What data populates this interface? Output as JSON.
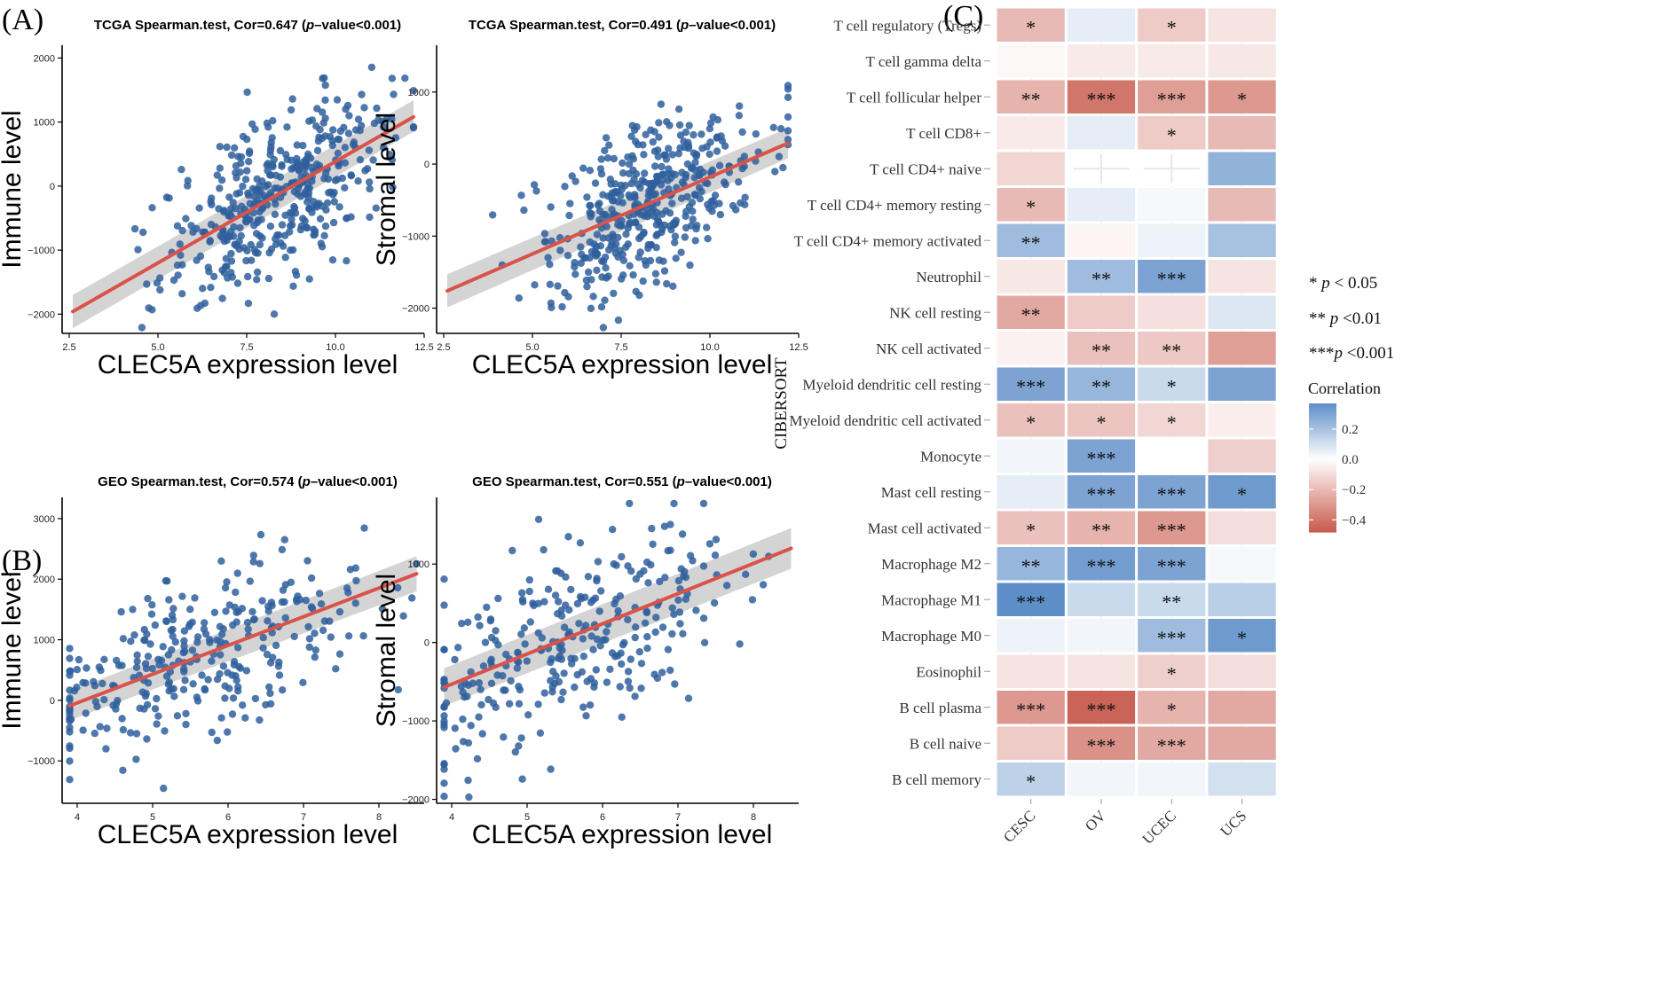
{
  "panel_labels": [
    "(A)",
    "(B)",
    "(C)"
  ],
  "colors": {
    "point": "#2f5f9c",
    "fit_line": "#d9534a",
    "ci_band": "#cfcfcf",
    "heat_neg": "#c85a4d",
    "heat_mid": "#ffffff",
    "heat_pos": "#5d8ec7"
  },
  "chart_data": [
    {
      "id": "A1",
      "type": "scatter",
      "panel": "(A)",
      "title_prefix": "TCGA Spearman.test, Cor=0.647 (",
      "title_p": "p",
      "title_suffix": "–value<0.001)",
      "xlabel": "CLEC5A expression level",
      "ylabel": "Immune level",
      "xlim": [
        2.3,
        12.5
      ],
      "ylim": [
        -2300,
        2200
      ],
      "xticks": [
        2.5,
        5.0,
        7.5,
        10.0,
        12.5
      ],
      "xtick_labels": [
        "2.5",
        "5.0",
        "7.5",
        "10.0",
        "12.5"
      ],
      "yticks": [
        -2000,
        -1000,
        0,
        1000,
        2000
      ],
      "ytick_labels": [
        "−2000",
        "−1000",
        "0",
        "1000",
        "2000"
      ],
      "fit": {
        "x": [
          2.6,
          12.2
        ],
        "y": [
          -1960,
          1080
        ]
      },
      "ci": {
        "lower": [
          -2220,
          850
        ],
        "upper": [
          -1700,
          1340
        ]
      },
      "points": {
        "n": 420,
        "center_x": 8.4,
        "sd_x": 1.6,
        "sd_resid": 620,
        "min_x": 2.5,
        "max_x": 12.2
      }
    },
    {
      "id": "A2",
      "type": "scatter",
      "panel": "(A)",
      "title_prefix": "TCGA Spearman.test, Cor=0.491 (",
      "title_p": "p",
      "title_suffix": "–value<0.001)",
      "xlabel": "CLEC5A expression level",
      "ylabel": "Stromal level",
      "xlim": [
        2.3,
        12.5
      ],
      "ylim": [
        -2350,
        1650
      ],
      "xticks": [
        2.5,
        5.0,
        7.5,
        10.0,
        12.5
      ],
      "xtick_labels": [
        "2.5",
        "5.0",
        "7.5",
        "10.0",
        "12.5"
      ],
      "yticks": [
        -2000,
        -1000,
        0,
        1000
      ],
      "ytick_labels": [
        "−2000",
        "−1000",
        "0",
        "1000"
      ],
      "fit": {
        "x": [
          2.6,
          12.2
        ],
        "y": [
          -1760,
          290
        ]
      },
      "ci": {
        "lower": [
          -1990,
          80
        ],
        "upper": [
          -1530,
          500
        ]
      },
      "points": {
        "n": 420,
        "center_x": 8.4,
        "sd_x": 1.6,
        "sd_resid": 560,
        "min_x": 2.5,
        "max_x": 12.2
      }
    },
    {
      "id": "B1",
      "type": "scatter",
      "panel": "(B)",
      "title_prefix": "GEO Spearman.test, Cor=0.574 (",
      "title_p": "p",
      "title_suffix": "–value<0.001)",
      "xlabel": "CLEC5A expression level",
      "ylabel": "Immune level",
      "xlim": [
        3.8,
        8.6
      ],
      "ylim": [
        -1700,
        3350
      ],
      "xticks": [
        4,
        5,
        6,
        7,
        8
      ],
      "xtick_labels": [
        "4",
        "5",
        "6",
        "7",
        "8"
      ],
      "yticks": [
        -1000,
        0,
        1000,
        2000,
        3000
      ],
      "ytick_labels": [
        "−1000",
        "0",
        "1000",
        "2000",
        "3000"
      ],
      "fit": {
        "x": [
          3.9,
          8.5
        ],
        "y": [
          -90,
          2090
        ]
      },
      "ci": {
        "lower": [
          -330,
          1800
        ],
        "upper": [
          150,
          2380
        ]
      },
      "points": {
        "n": 300,
        "center_x": 5.6,
        "sd_x": 1.05,
        "sd_resid": 700,
        "min_x": 3.9,
        "max_x": 8.5
      }
    },
    {
      "id": "B2",
      "type": "scatter",
      "panel": "(B)",
      "title_prefix": "GEO Spearman.test, Cor=0.551 (",
      "title_p": "p",
      "title_suffix": "–value<0.001)",
      "xlabel": "CLEC5A expression level",
      "ylabel": "Stromal level",
      "xlim": [
        3.8,
        8.6
      ],
      "ylim": [
        -2050,
        1850
      ],
      "xticks": [
        4,
        5,
        6,
        7,
        8
      ],
      "xtick_labels": [
        "4",
        "5",
        "6",
        "7",
        "8"
      ],
      "yticks": [
        -2000,
        -1000,
        0,
        1000
      ],
      "ytick_labels": [
        "−2000",
        "−1000",
        "0",
        "1000"
      ],
      "fit": {
        "x": [
          3.9,
          8.5
        ],
        "y": [
          -570,
          1200
        ]
      },
      "ci": {
        "lower": [
          -810,
          940
        ],
        "upper": [
          -330,
          1460
        ]
      },
      "points": {
        "n": 300,
        "center_x": 5.6,
        "sd_x": 1.05,
        "sd_resid": 620,
        "min_x": 3.9,
        "max_x": 8.5
      }
    },
    {
      "id": "C",
      "type": "heatmap",
      "panel": "(C)",
      "ylabel": "CIBERSORT",
      "columns": [
        "CESC",
        "OV",
        "UCEC",
        "UCS"
      ],
      "rows": [
        "T cell regulatory (Tregs)",
        "T cell gamma delta",
        "T cell follicular helper",
        "T cell CD8+",
        "T cell CD4+ naive",
        "T cell CD4+ memory resting",
        "T cell CD4+ memory activated",
        "Neutrophil",
        "NK cell resting",
        "NK cell activated",
        "Myeloid dendritic cell resting",
        "Myeloid dendritic cell activated",
        "Monocyte",
        "Mast cell resting",
        "Mast cell activated",
        "Macrophage M2",
        "Macrophage M1",
        "Macrophage M0",
        "Eosinophil",
        "B cell plasma",
        "B cell naive",
        "B cell memory"
      ],
      "values": [
        [
          -0.2,
          0.06,
          -0.15,
          -0.08
        ],
        [
          -0.02,
          -0.06,
          -0.06,
          -0.07
        ],
        [
          -0.22,
          -0.4,
          -0.28,
          -0.3
        ],
        [
          -0.06,
          0.06,
          -0.15,
          -0.2
        ],
        [
          -0.12,
          null,
          null,
          0.25
        ],
        [
          -0.2,
          0.06,
          0.02,
          -0.2
        ],
        [
          0.22,
          -0.03,
          0.04,
          0.2
        ],
        [
          -0.07,
          0.22,
          0.3,
          -0.08
        ],
        [
          -0.25,
          -0.15,
          -0.09,
          0.08
        ],
        [
          -0.04,
          -0.18,
          -0.16,
          -0.28
        ],
        [
          0.3,
          0.24,
          0.12,
          0.3
        ],
        [
          -0.18,
          -0.17,
          -0.12,
          -0.05
        ],
        [
          0.03,
          0.3,
          0.0,
          -0.14
        ],
        [
          0.06,
          0.3,
          0.3,
          0.33
        ],
        [
          -0.18,
          -0.22,
          -0.3,
          -0.1
        ],
        [
          0.24,
          0.32,
          0.3,
          0.02
        ],
        [
          0.38,
          0.12,
          0.12,
          0.16
        ],
        [
          0.04,
          0.03,
          0.22,
          0.33
        ],
        [
          -0.08,
          -0.08,
          -0.14,
          -0.1
        ],
        [
          -0.3,
          -0.45,
          -0.22,
          -0.25
        ],
        [
          -0.15,
          -0.32,
          -0.25,
          -0.25
        ],
        [
          0.15,
          0.03,
          0.03,
          0.1
        ]
      ],
      "stars": [
        [
          "*",
          "",
          "*",
          ""
        ],
        [
          "",
          "",
          "",
          ""
        ],
        [
          "**",
          "***",
          "***",
          "*"
        ],
        [
          "",
          "",
          "*",
          ""
        ],
        [
          "",
          "",
          "",
          ""
        ],
        [
          "*",
          "",
          "",
          ""
        ],
        [
          "**",
          "",
          "",
          ""
        ],
        [
          "",
          "**",
          "***",
          ""
        ],
        [
          "**",
          "",
          "",
          ""
        ],
        [
          "",
          "**",
          "**",
          ""
        ],
        [
          "***",
          "**",
          "*",
          ""
        ],
        [
          "*",
          "*",
          "*",
          ""
        ],
        [
          "",
          "***",
          "",
          ""
        ],
        [
          "",
          "***",
          "***",
          "*"
        ],
        [
          "*",
          "**",
          "***",
          ""
        ],
        [
          "**",
          "***",
          "***",
          ""
        ],
        [
          "***",
          "",
          "**",
          ""
        ],
        [
          "",
          "",
          "***",
          "*"
        ],
        [
          "",
          "",
          "*",
          ""
        ],
        [
          "***",
          "***",
          "*",
          ""
        ],
        [
          "",
          "***",
          "***",
          ""
        ],
        [
          "*",
          "",
          "",
          ""
        ]
      ],
      "significance_legend": [
        {
          "stars": "* ",
          "p": "p",
          "rest": " < 0.05"
        },
        {
          "stars": "** ",
          "p": "p",
          "rest": " <0.01"
        },
        {
          "stars": "***",
          "p": "p",
          "rest": " <0.001"
        }
      ],
      "colorbar": {
        "title": "Correlation",
        "range": [
          -0.48,
          0.37
        ],
        "ticks": [
          0.2,
          0.0,
          -0.2,
          -0.4
        ],
        "tick_labels": [
          "0.2",
          "0.0",
          "−0.2",
          "−0.4"
        ]
      }
    }
  ]
}
